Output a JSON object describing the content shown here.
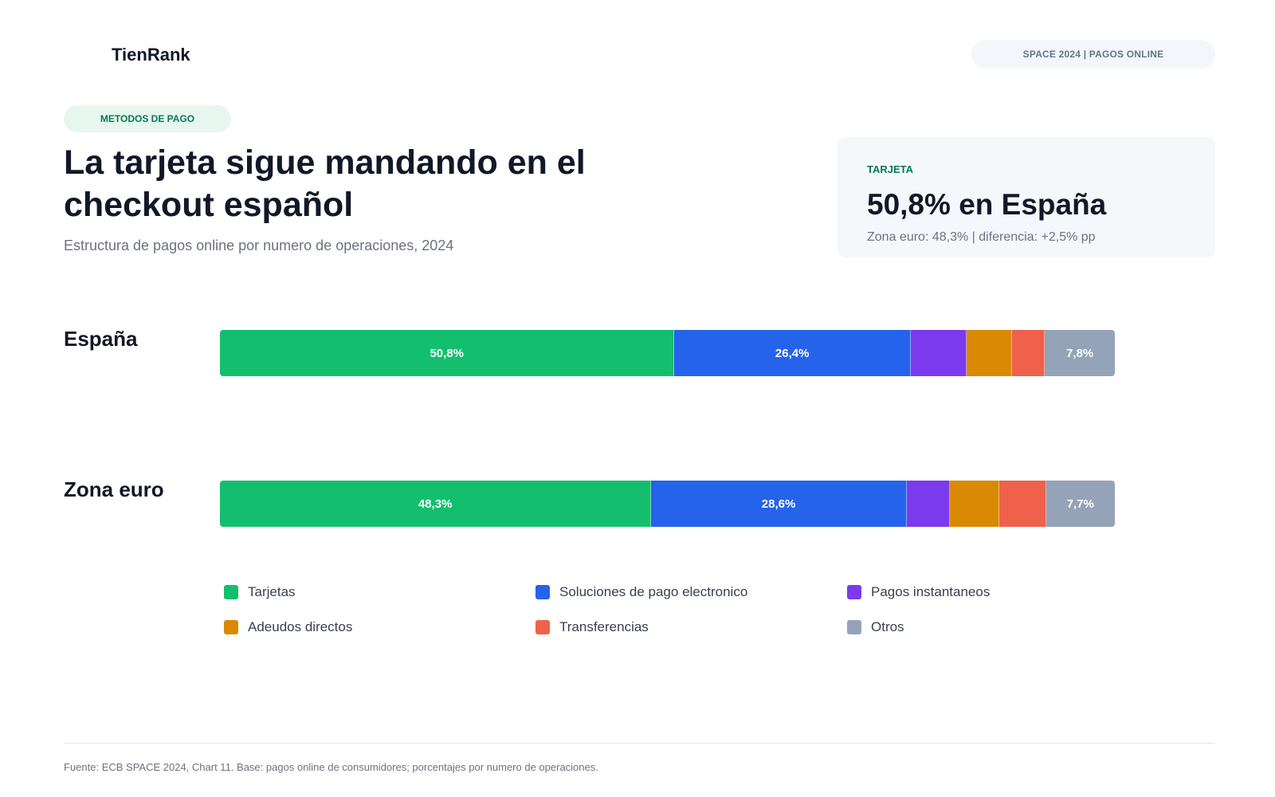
{
  "header": {
    "brand": "TienRank",
    "top_pill": "SPACE 2024 | PAGOS ONLINE"
  },
  "intro": {
    "tag": "METODOS DE PAGO",
    "headline": "La tarjeta sigue mandando en el checkout español",
    "subtitle": "Estructura de pagos online por numero de operaciones, 2024"
  },
  "kpi": {
    "label": "TARJETA",
    "value": "50,8% en España",
    "note": "Zona euro: 48,3% | diferencia: +2,5% pp"
  },
  "chart_data": {
    "type": "bar",
    "orientation": "horizontal",
    "stacked": true,
    "unit": "%",
    "xlim": [
      0,
      100
    ],
    "grid": false,
    "legend_position": "bottom",
    "categories": [
      "España",
      "Zona euro"
    ],
    "series": [
      {
        "name": "Tarjetas",
        "color": "#13bf6f",
        "values": [
          50.8,
          48.3
        ],
        "labels": [
          "50,8%",
          "48,3%"
        ]
      },
      {
        "name": "Soluciones de pago electronico",
        "color": "#2563eb",
        "values": [
          26.4,
          28.6
        ],
        "labels": [
          "26,4%",
          "28,6%"
        ]
      },
      {
        "name": "Pagos instantaneos",
        "color": "#7c3aed",
        "values": [
          6.2,
          4.8
        ],
        "labels": [
          "",
          ""
        ]
      },
      {
        "name": "Adeudos directos",
        "color": "#d98a02",
        "values": [
          5.1,
          5.6
        ],
        "labels": [
          "",
          ""
        ]
      },
      {
        "name": "Transferencias",
        "color": "#ef614a",
        "values": [
          3.7,
          5.2
        ],
        "labels": [
          "",
          ""
        ]
      },
      {
        "name": "Otros",
        "color": "#94a3b8",
        "values": [
          7.8,
          7.7
        ],
        "labels": [
          "7,8%",
          "7,7%"
        ]
      }
    ]
  },
  "footer": {
    "source": "Fuente: ECB SPACE 2024, Chart 11. Base: pagos online de consumidores; porcentajes por numero de operaciones."
  }
}
